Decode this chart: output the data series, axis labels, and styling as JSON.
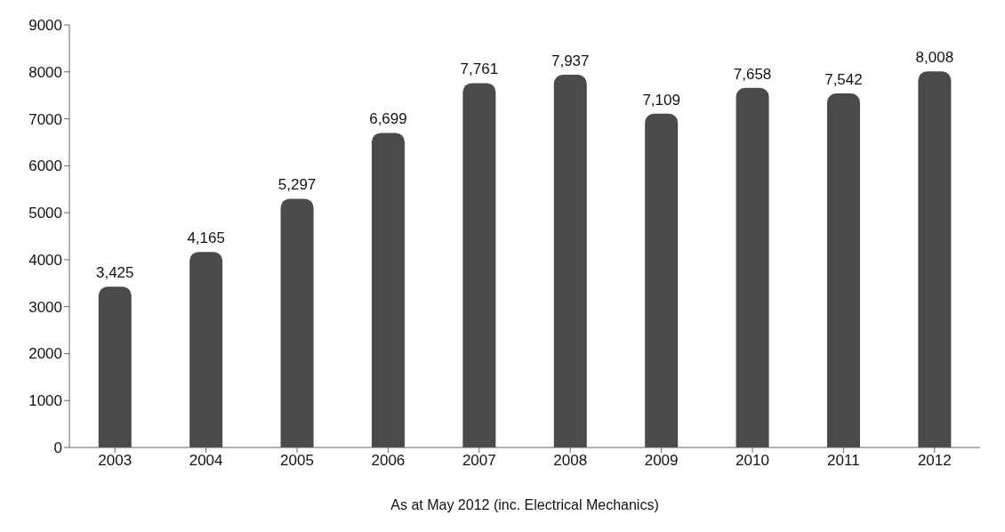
{
  "chart_data": {
    "type": "bar",
    "xlabel": "As at May 2012 (inc. Electrical Mechanics)",
    "categories": [
      "2003",
      "2004",
      "2005",
      "2006",
      "2007",
      "2008",
      "2009",
      "2010",
      "2011",
      "2012"
    ],
    "values": [
      3425,
      4165,
      5297,
      6699,
      7761,
      7937,
      7109,
      7658,
      7542,
      8008
    ],
    "value_labels": [
      "3,425",
      "4,165",
      "5,297",
      "6,699",
      "7,761",
      "7,937",
      "7,109",
      "7,658",
      "7,542",
      "8,008"
    ],
    "color": "#4a4a4a",
    "ylim": [
      0,
      9000
    ],
    "yticks": [
      0,
      1000,
      2000,
      3000,
      4000,
      5000,
      6000,
      7000,
      8000,
      9000
    ],
    "grid": false
  }
}
